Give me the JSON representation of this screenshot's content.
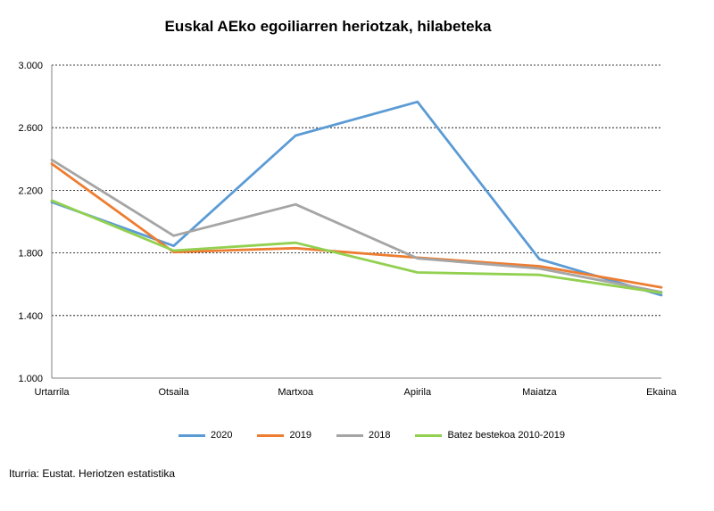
{
  "chart_data": {
    "type": "line",
    "title": "Euskal AEko egoiliarren heriotzak, hilabeteka",
    "categories": [
      "Urtarrila",
      "Otsaila",
      "Martxoa",
      "Apirila",
      "Maiatza",
      "Ekaina"
    ],
    "yticks": [
      "1.000",
      "1.400",
      "1.800",
      "2.200",
      "2.600",
      "3.000"
    ],
    "ylim": [
      1000,
      3000
    ],
    "grid": true,
    "legend_position": "bottom",
    "series": [
      {
        "name": "2020",
        "color": "#5B9BD5",
        "values": [
          2125,
          1845,
          2550,
          2765,
          1760,
          1530
        ]
      },
      {
        "name": "2019",
        "color": "#ED7D31",
        "values": [
          2370,
          1805,
          1830,
          1770,
          1715,
          1580
        ]
      },
      {
        "name": "2018",
        "color": "#A5A5A5",
        "values": [
          2395,
          1910,
          2110,
          1765,
          1700,
          1550
        ]
      },
      {
        "name": "Batez bestekoa 2010-2019",
        "color": "#92D050",
        "values": [
          2135,
          1815,
          1865,
          1675,
          1660,
          1545
        ]
      }
    ]
  },
  "source": "Iturria: Eustat. Heriotzen estatistika"
}
